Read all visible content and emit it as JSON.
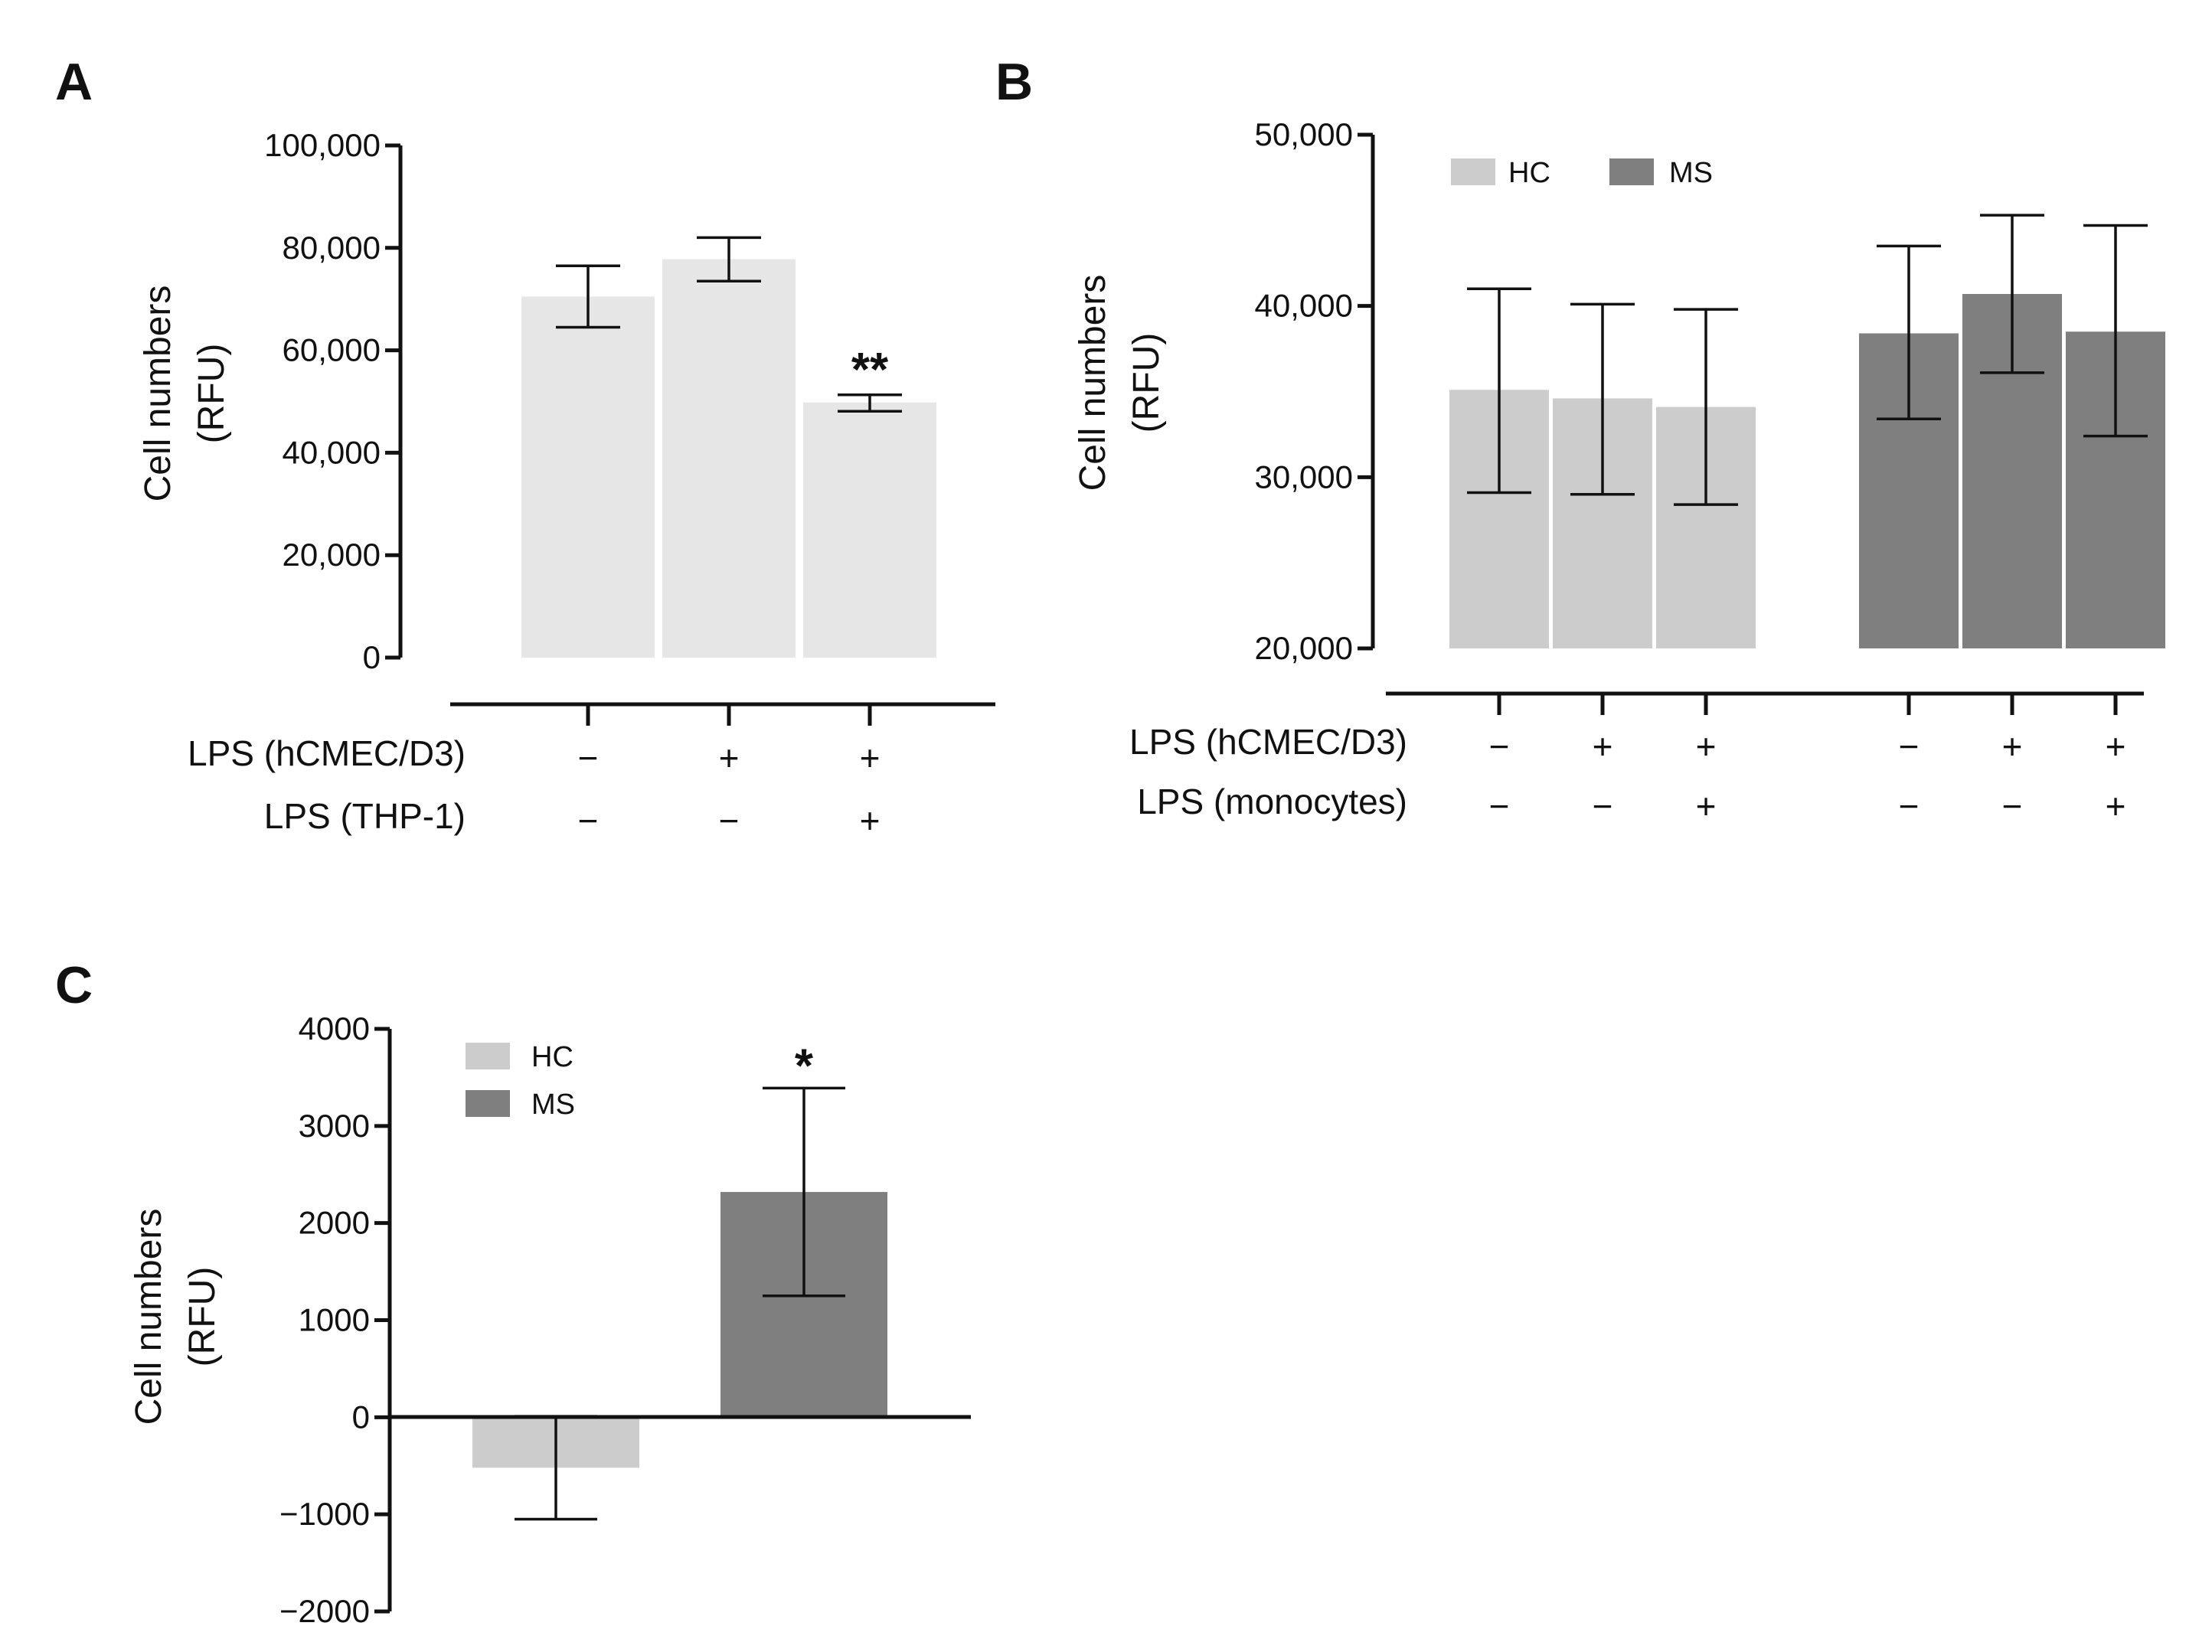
{
  "colors": {
    "panelA_bar": "#e6e6e6",
    "HC": "#cccccc",
    "MS": "#7f7f7f",
    "ink": "#111111"
  },
  "chart_data": [
    {
      "panel": "A",
      "type": "bar",
      "ylabel": [
        "Cell numbers",
        "(RFU)"
      ],
      "ylim": [
        0,
        100000
      ],
      "yticks": [
        0,
        20000,
        40000,
        60000,
        80000,
        100000
      ],
      "ytick_labels": [
        "0",
        "20,000",
        "40,000",
        "60,000",
        "80,000",
        "100,000"
      ],
      "series": [
        {
          "name": "",
          "values": [
            70500,
            77800,
            49800
          ],
          "err_low": [
            64500,
            73500,
            48100
          ],
          "err_high": [
            76500,
            82000,
            51300
          ]
        }
      ],
      "significance": [
        "",
        "",
        "**"
      ],
      "conditions": [
        {
          "label": "LPS (hCMEC/D3)",
          "signs": [
            "−",
            "+",
            "+"
          ]
        },
        {
          "label": "LPS (THP-1)",
          "signs": [
            "−",
            "−",
            "+"
          ]
        }
      ]
    },
    {
      "panel": "B",
      "type": "bar",
      "ylabel": [
        "Cell numbers",
        "(RFU)"
      ],
      "ylim": [
        20000,
        50000
      ],
      "yticks": [
        20000,
        30000,
        40000,
        50000
      ],
      "ytick_labels": [
        "20,000",
        "30,000",
        "40,000",
        "50,000"
      ],
      "legend": [
        "HC",
        "MS"
      ],
      "legend_position": "top-left",
      "series": [
        {
          "name": "HC",
          "values": [
            35100,
            34600,
            34100
          ],
          "err_low": [
            29100,
            29000,
            28400
          ],
          "err_high": [
            41000,
            40100,
            39800
          ]
        },
        {
          "name": "MS",
          "values": [
            38400,
            40700,
            38500
          ],
          "err_low": [
            33400,
            36100,
            32400
          ],
          "err_high": [
            43500,
            45300,
            44700
          ]
        }
      ],
      "conditions": [
        {
          "label": "LPS (hCMEC/D3)",
          "signs": [
            "−",
            "+",
            "+",
            "−",
            "+",
            "+"
          ]
        },
        {
          "label": "LPS (monocytes)",
          "signs": [
            "−",
            "−",
            "+",
            "−",
            "−",
            "+"
          ]
        }
      ]
    },
    {
      "panel": "C",
      "type": "bar",
      "ylabel": [
        "Cell numbers",
        "(RFU)"
      ],
      "ylim": [
        -2000,
        4000
      ],
      "yticks": [
        -2000,
        -1000,
        0,
        1000,
        2000,
        3000,
        4000
      ],
      "ytick_labels": [
        "−2000",
        "−1000",
        "0",
        "1000",
        "2000",
        "3000",
        "4000"
      ],
      "legend": [
        "HC",
        "MS"
      ],
      "legend_position": "top-left",
      "categories": [
        "HC",
        "MS"
      ],
      "values": [
        -520,
        2320
      ],
      "err_low": [
        -1050,
        1250
      ],
      "err_high": [
        10,
        3390
      ],
      "significance": [
        "",
        "*"
      ]
    }
  ]
}
